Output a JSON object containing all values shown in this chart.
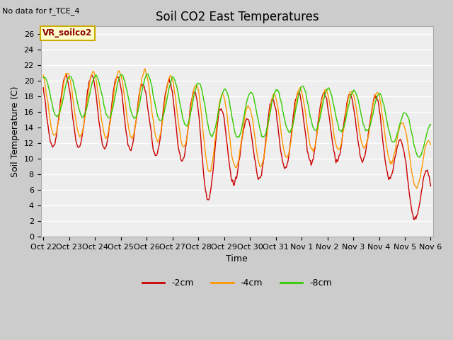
{
  "title": "Soil CO2 East Temperatures",
  "subtitle": "No data for f_TCE_4",
  "ylabel": "Soil Temperature (C)",
  "xlabel": "Time",
  "ylim": [
    0,
    27
  ],
  "yticks": [
    0,
    2,
    4,
    6,
    8,
    10,
    12,
    14,
    16,
    18,
    20,
    22,
    24,
    26
  ],
  "line_colors": {
    "2cm": "#cc0000",
    "4cm": "#ff9900",
    "8cm": "#33cc00"
  },
  "legend_label": "VR_soilco2",
  "legend_bg": "#ffffcc",
  "legend_border": "#ccaa00",
  "xtick_labels": [
    "Oct 22",
    "Oct 23",
    "Oct 24",
    "Oct 25",
    "Oct 26",
    "Oct 27",
    "Oct 28",
    "Oct 29",
    "Oct 30",
    "Oct 31",
    "Nov 1",
    "Nov 2",
    "Nov 3",
    "Nov 4",
    "Nov 5",
    "Nov 6"
  ],
  "title_fontsize": 12,
  "axis_label_fontsize": 9,
  "tick_fontsize": 8
}
